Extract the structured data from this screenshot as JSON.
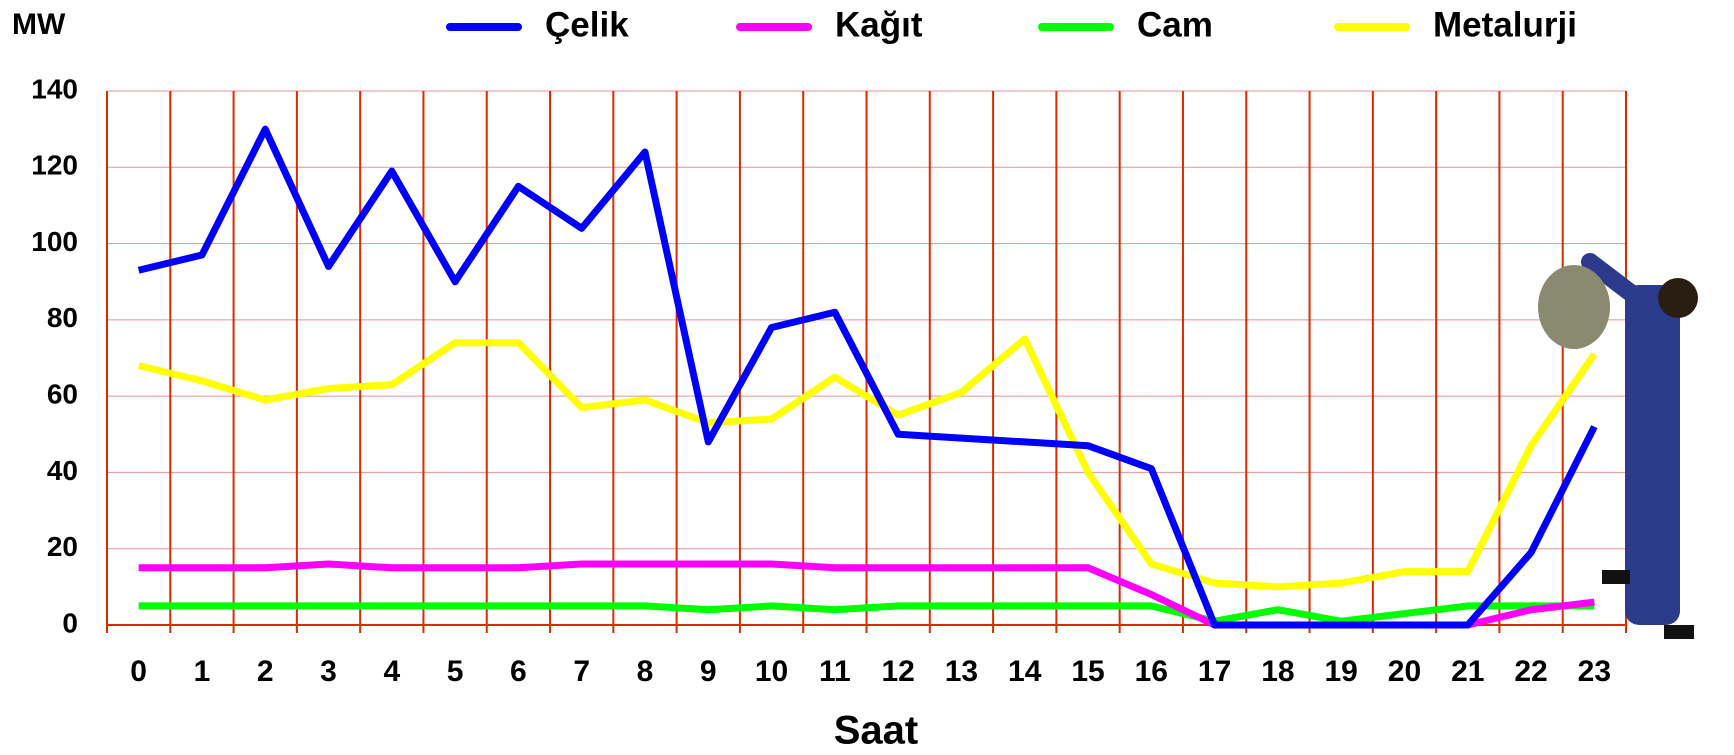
{
  "chart_data": {
    "type": "line",
    "y_label": "MW",
    "x_label": "Saat",
    "categories": [
      "0",
      "1",
      "2",
      "3",
      "4",
      "5",
      "6",
      "7",
      "8",
      "9",
      "10",
      "11",
      "12",
      "13",
      "14",
      "15",
      "16",
      "17",
      "18",
      "19",
      "20",
      "21",
      "22",
      "23"
    ],
    "series": [
      {
        "name": "Çelik",
        "color": "#0000ff",
        "values": [
          93,
          97,
          130,
          94,
          119,
          90,
          115,
          104,
          124,
          48,
          78,
          82,
          50,
          49,
          48,
          47,
          41,
          0,
          0,
          0,
          0,
          0,
          19,
          52
        ]
      },
      {
        "name": "Kağıt",
        "color": "#ff00ff",
        "values": [
          15,
          15,
          15,
          16,
          15,
          15,
          15,
          16,
          16,
          16,
          16,
          15,
          15,
          15,
          15,
          15,
          8,
          0,
          0,
          0,
          0,
          0,
          4,
          6
        ]
      },
      {
        "name": "Cam",
        "color": "#00ff00",
        "values": [
          5,
          5,
          5,
          5,
          5,
          5,
          5,
          5,
          5,
          4,
          5,
          4,
          5,
          5,
          5,
          5,
          5,
          1,
          4,
          1,
          3,
          5,
          5,
          5
        ]
      },
      {
        "name": "Metalurji",
        "color": "#ffff00",
        "values": [
          68,
          64,
          59,
          62,
          63,
          74,
          74,
          57,
          59,
          53,
          54,
          65,
          55,
          61,
          75,
          40,
          16,
          11,
          10,
          11,
          14,
          14,
          47,
          71
        ]
      }
    ],
    "ylim": [
      0,
      140
    ],
    "yticks": [
      0,
      20,
      40,
      60,
      80,
      100,
      120,
      140
    ],
    "grid": true
  }
}
